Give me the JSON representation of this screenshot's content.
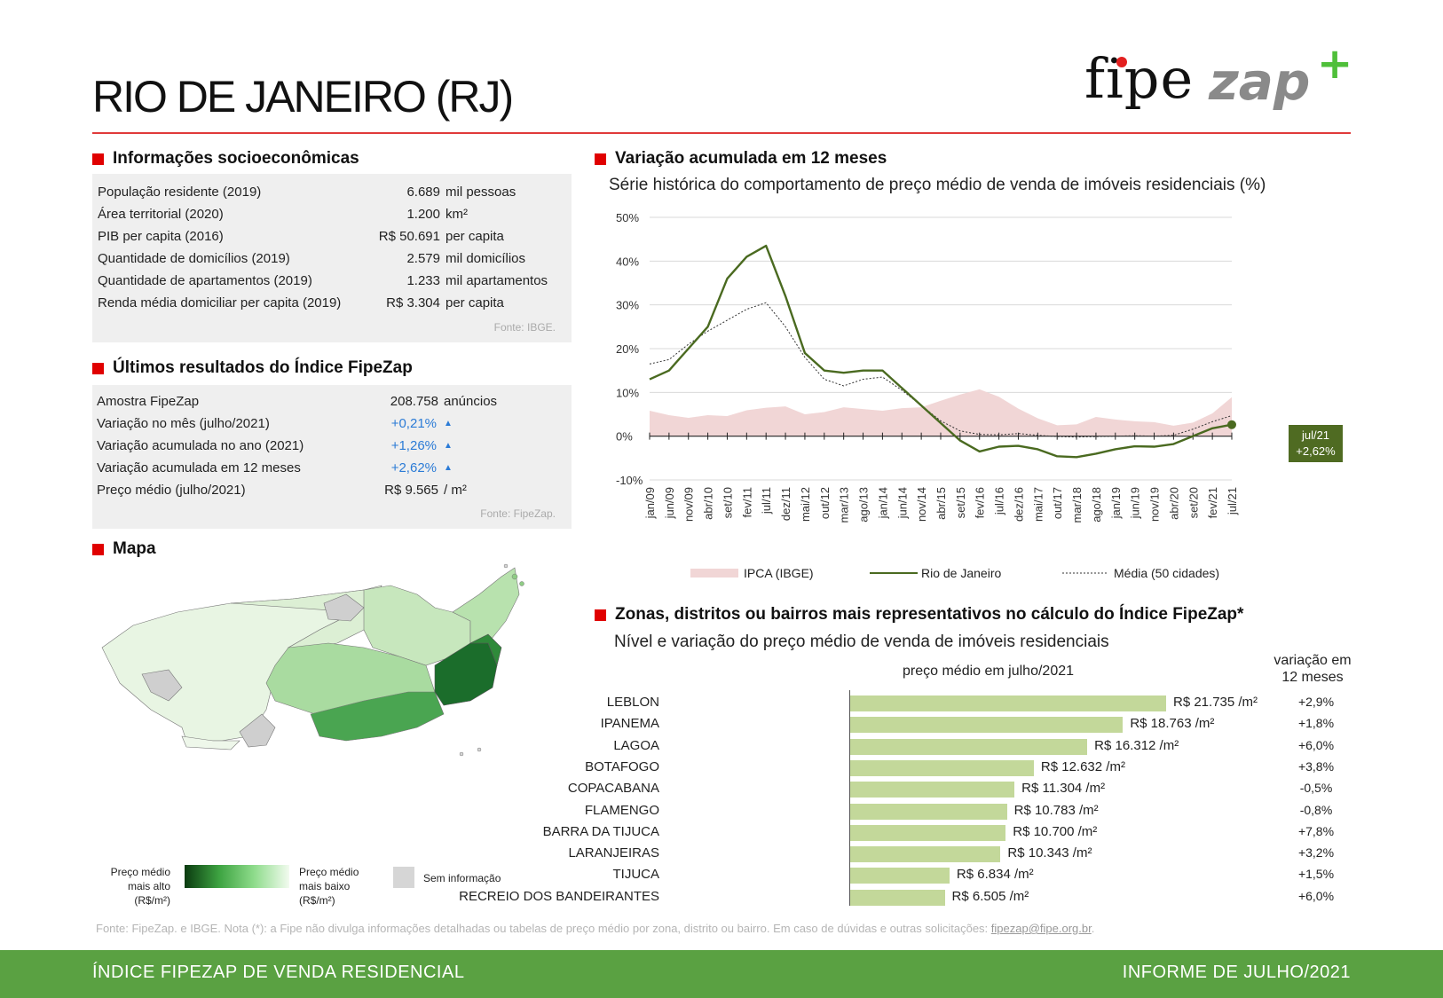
{
  "header": {
    "title": "RIO DE JANEIRO (RJ)"
  },
  "logo": {
    "fipe": "fipe",
    "zap": "zap",
    "plus": "+"
  },
  "socio": {
    "title": "Informações socioeconômicas",
    "rows": [
      {
        "label": "População residente (2019)",
        "value": "6.689",
        "unit": "mil pessoas"
      },
      {
        "label": "Área territorial (2020)",
        "value": "1.200",
        "unit": "km²"
      },
      {
        "label": "PIB per capita (2016)",
        "value": "R$ 50.691",
        "unit": "per capita"
      },
      {
        "label": "Quantidade de domicílios (2019)",
        "value": "2.579",
        "unit": "mil domicílios"
      },
      {
        "label": "Quantidade de apartamentos (2019)",
        "value": "1.233",
        "unit": "mil apartamentos"
      },
      {
        "label": "Renda média domiciliar per capita (2019)",
        "value": "R$ 3.304",
        "unit": "per capita"
      }
    ],
    "source": "Fonte: IBGE."
  },
  "fipezap": {
    "title": "Últimos resultados do Índice FipeZap",
    "rows": [
      {
        "label": "Amostra FipeZap",
        "value": "208.758",
        "unit": "anúncios"
      },
      {
        "label": "Variação no mês (julho/2021)",
        "value": "+0,21%",
        "unit": "▲"
      },
      {
        "label": "Variação acumulada no ano (2021)",
        "value": "+1,26%",
        "unit": "▲"
      },
      {
        "label": "Variação acumulada em 12 meses",
        "value": "+2,62%",
        "unit": "▲"
      },
      {
        "label": "Preço médio (julho/2021)",
        "value": "R$ 9.565",
        "unit": "/ m²"
      }
    ],
    "source": "Fonte: FipeZap."
  },
  "map": {
    "title": "Mapa",
    "legend_high": [
      "Preço médio",
      "mais alto",
      "(R$/m²)"
    ],
    "legend_low": [
      "Preço médio",
      "mais baixo",
      "(R$/m²)"
    ],
    "legend_none": "Sem informação"
  },
  "variation": {
    "title": "Variação acumulada em 12 meses",
    "subtitle": "Série histórica do comportamento de preço médio de venda de imóveis residenciais (%)",
    "badge_date": "jul/21",
    "badge_value": "+2,62%"
  },
  "chart_data": [
    {
      "type": "line",
      "ylim": [
        -10,
        50
      ],
      "y_ticks": [
        "50%",
        "40%",
        "30%",
        "20%",
        "10%",
        "0%",
        "-10%"
      ],
      "x_ticks": [
        "jan/09",
        "jun/09",
        "nov/09",
        "abr/10",
        "set/10",
        "fev/11",
        "jul/11",
        "dez/11",
        "mai/12",
        "out/12",
        "mar/13",
        "ago/13",
        "jan/14",
        "jun/14",
        "nov/14",
        "abr/15",
        "set/15",
        "fev/16",
        "jul/16",
        "dez/16",
        "mai/17",
        "out/17",
        "mar/18",
        "ago/18",
        "jan/19",
        "jun/19",
        "nov/19",
        "abr/20",
        "set/20",
        "fev/21",
        "jul/21"
      ],
      "grid": true,
      "legend_position": "bottom",
      "series": [
        {
          "name": "IPCA (IBGE)",
          "kind": "area",
          "color": "#f1d6d6",
          "values": [
            5.8,
            4.8,
            4.2,
            4.8,
            4.6,
            5.9,
            6.5,
            6.8,
            5.0,
            5.5,
            6.6,
            6.2,
            5.8,
            6.4,
            6.6,
            8.1,
            9.5,
            10.7,
            9.0,
            6.3,
            4.1,
            2.5,
            2.7,
            4.4,
            3.8,
            3.4,
            3.2,
            2.4,
            3.1,
            5.2,
            8.9
          ]
        },
        {
          "name": "Rio de Janeiro",
          "kind": "line",
          "color": "#4a6a20",
          "values": [
            13,
            15,
            20,
            25,
            36,
            41,
            43.5,
            32,
            19,
            15,
            14.5,
            15,
            15,
            11,
            7,
            3,
            -1,
            -3.5,
            -2.4,
            -2.2,
            -3,
            -4.6,
            -4.8,
            -4,
            -3,
            -2.3,
            -2.4,
            -1.8,
            0,
            1.8,
            2.62
          ]
        },
        {
          "name": "Média (50 cidades)",
          "kind": "dotted",
          "color": "#333333",
          "values": [
            16.5,
            17.5,
            21,
            24,
            26.5,
            29,
            30.5,
            25,
            18,
            13,
            11.5,
            13,
            13.5,
            10.5,
            7,
            3.5,
            1.2,
            0.4,
            0.3,
            0.6,
            0.2,
            -0.1,
            -0.2,
            -0.1,
            0,
            0.1,
            0,
            0.2,
            1.6,
            3.3,
            4.7
          ]
        }
      ]
    },
    {
      "type": "bar",
      "title": "preço médio em julho/2021",
      "categories": [
        "LEBLON",
        "IPANEMA",
        "LAGOA",
        "BOTAFOGO",
        "COPACABANA",
        "FLAMENGO",
        "BARRA DA TIJUCA",
        "LARANJEIRAS",
        "TIJUCA",
        "RECREIO DOS BANDEIRANTES"
      ],
      "values": [
        21735,
        18763,
        16312,
        12632,
        11304,
        10783,
        10700,
        10343,
        6834,
        6505
      ],
      "value_labels": [
        "R$ 21.735 /m²",
        "R$ 18.763 /m²",
        "R$ 16.312 /m²",
        "R$ 12.632 /m²",
        "R$ 11.304 /m²",
        "R$ 10.783 /m²",
        "R$ 10.700 /m²",
        "R$ 10.343 /m²",
        "R$ 6.834 /m²",
        "R$ 6.505 /m²"
      ],
      "variation_header": [
        "variação em",
        "12 meses"
      ],
      "variations": [
        "+2,9%",
        "+1,8%",
        "+6,0%",
        "+3,8%",
        "-0,5%",
        "-0,8%",
        "+7,8%",
        "+3,2%",
        "+1,5%",
        "+6,0%"
      ],
      "xlim": [
        0,
        22000
      ],
      "color": "#c3d89a"
    }
  ],
  "zones": {
    "title": "Zonas, distritos ou bairros mais representativos no cálculo do Índice FipeZap*",
    "subtitle": "Nível e variação do preço médio de venda de imóveis residenciais"
  },
  "footnote": {
    "text": "Fonte: FipeZap. e IBGE. Nota (*): a Fipe não divulga informações detalhadas ou tabelas de preço médio por zona, distrito ou bairro. Em caso de dúvidas e outras solicitações: ",
    "email": "fipezap@fipe.org.br",
    "end": "."
  },
  "footer": {
    "left": "ÍNDICE FIPEZAP DE VENDA RESIDENCIAL",
    "right": "INFORME DE JULHO/2021"
  }
}
